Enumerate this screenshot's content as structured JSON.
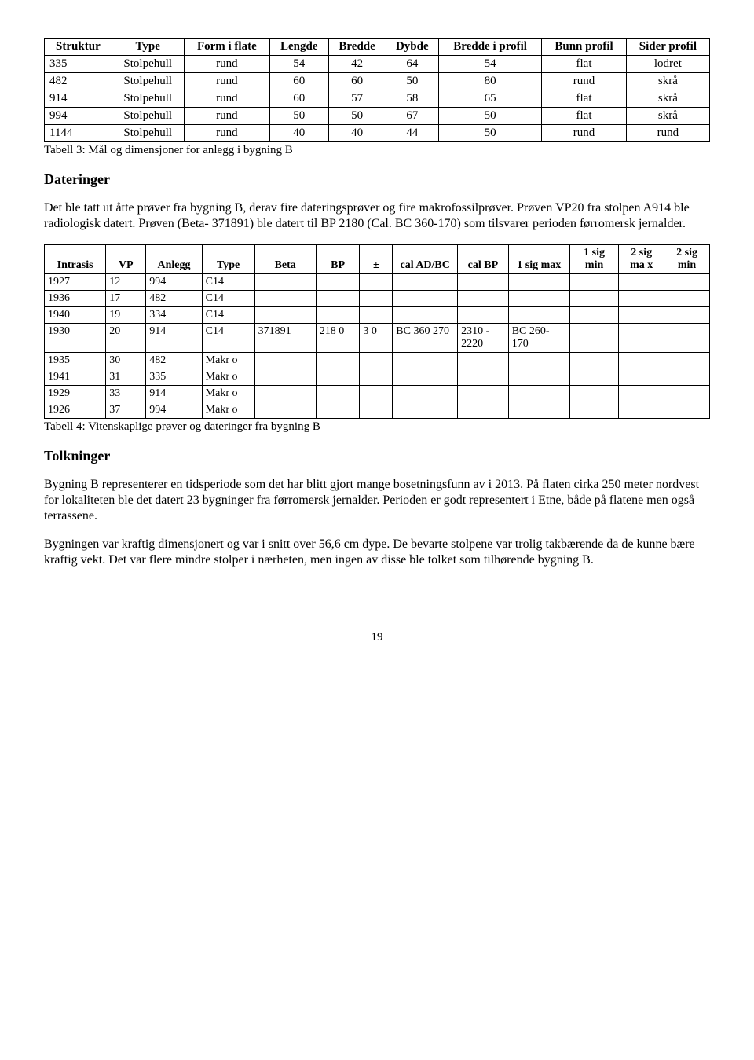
{
  "table1": {
    "headers": [
      "Struktur",
      "Type",
      "Form i flate",
      "Lengde",
      "Bredde",
      "Dybde",
      "Bredde i profil",
      "Bunn profil",
      "Sider profil"
    ],
    "rows": [
      [
        "335",
        "Stolpehull",
        "rund",
        "54",
        "42",
        "64",
        "54",
        "flat",
        "lodret"
      ],
      [
        "482",
        "Stolpehull",
        "rund",
        "60",
        "60",
        "50",
        "80",
        "rund",
        "skrå"
      ],
      [
        "914",
        "Stolpehull",
        "rund",
        "60",
        "57",
        "58",
        "65",
        "flat",
        "skrå"
      ],
      [
        "994",
        "Stolpehull",
        "rund",
        "50",
        "50",
        "67",
        "50",
        "flat",
        "skrå"
      ],
      [
        "1144",
        "Stolpehull",
        "rund",
        "40",
        "40",
        "44",
        "50",
        "rund",
        "rund"
      ]
    ],
    "caption": "Tabell 3: Mål og dimensjoner for anlegg i bygning B"
  },
  "sect_dateringer": "Dateringer",
  "para_dateringer": "Det ble tatt ut åtte prøver fra bygning B, derav fire dateringsprøver og fire makrofossilprøver. Prøven VP20 fra stolpen A914 ble radiologisk datert. Prøven (Beta- 371891) ble datert til BP 2180 (Cal. BC 360-170) som tilsvarer perioden førromersk jernalder.",
  "table2": {
    "headers": [
      "Intrasis",
      "VP",
      "Anlegg",
      "Type",
      "Beta",
      "BP",
      "±",
      "cal AD/BC",
      "cal BP",
      "1 sig max",
      "1 sig min",
      "2 sig ma x",
      "2 sig min"
    ],
    "rows": [
      [
        "1927",
        "12",
        "994",
        "C14",
        "",
        "",
        "",
        "",
        "",
        "",
        "",
        "",
        ""
      ],
      [
        "1936",
        "17",
        "482",
        "C14",
        "",
        "",
        "",
        "",
        "",
        "",
        "",
        "",
        ""
      ],
      [
        "1940",
        "19",
        "334",
        "C14",
        "",
        "",
        "",
        "",
        "",
        "",
        "",
        "",
        ""
      ],
      [
        "1930",
        "20",
        "914",
        "C14",
        "371891",
        "218 0",
        "3 0",
        "BC 360 270",
        "2310 - 2220",
        "BC 260- 170",
        "",
        "",
        ""
      ],
      [
        "1935",
        "30",
        "482",
        "Makr o",
        "",
        "",
        "",
        "",
        "",
        "",
        "",
        "",
        ""
      ],
      [
        "1941",
        "31",
        "335",
        "Makr o",
        "",
        "",
        "",
        "",
        "",
        "",
        "",
        "",
        ""
      ],
      [
        "1929",
        "33",
        "914",
        "Makr o",
        "",
        "",
        "",
        "",
        "",
        "",
        "",
        "",
        ""
      ],
      [
        "1926",
        "37",
        "994",
        "Makr o",
        "",
        "",
        "",
        "",
        "",
        "",
        "",
        "",
        ""
      ]
    ],
    "caption": "Tabell 4: Vitenskaplige prøver og dateringer fra bygning B"
  },
  "sect_tolkninger": "Tolkninger",
  "para_tolk1": "Bygning B representerer en tidsperiode som det har blitt gjort mange bosetningsfunn av i 2013. På flaten cirka 250 meter nordvest for lokaliteten ble det datert 23 bygninger fra førromersk jernalder. Perioden er godt representert i Etne, både på flatene men også terrassene.",
  "para_tolk2": "Bygningen var kraftig dimensjonert og var i snitt over 56,6 cm dype. De bevarte stolpene var trolig takbærende da de kunne bære kraftig vekt. Det var flere mindre stolper i nærheten, men ingen av disse ble tolket som tilhørende bygning B.",
  "page_number": "19",
  "colors": {
    "text": "#000000",
    "background": "#ffffff",
    "border": "#000000"
  },
  "column_widths_tbl2": [
    "56",
    "32",
    "50",
    "46",
    "56",
    "36",
    "24",
    "60",
    "44",
    "56",
    "42",
    "38",
    "38"
  ]
}
